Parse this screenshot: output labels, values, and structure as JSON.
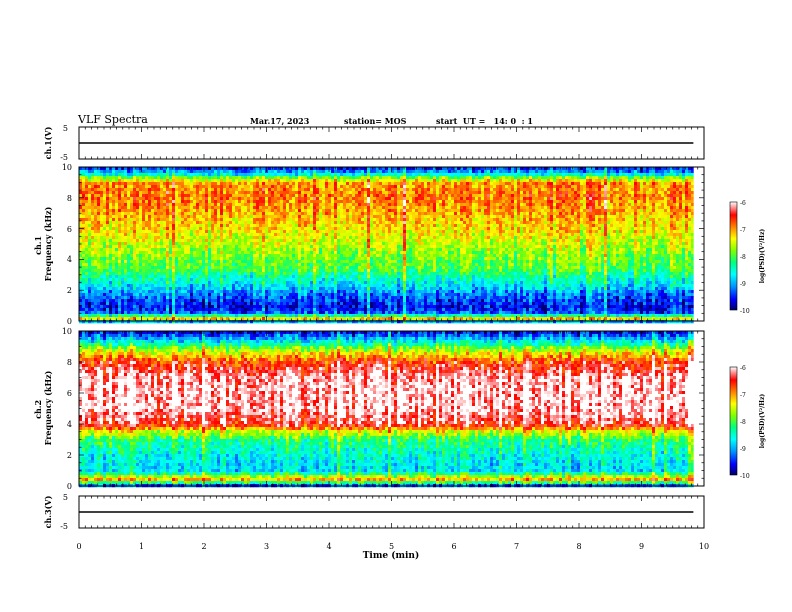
{
  "header": {
    "title": "VLF Spectra",
    "date": "Mar.17, 2023",
    "station": "station= MOS",
    "start": "start  UT =   14: 0  : 1"
  },
  "chart_data": [
    {
      "type": "line",
      "name": "ch1-waveform",
      "ylabel": "ch.1(V)",
      "ylim": [
        -5,
        5
      ],
      "yticks": [
        "5",
        "-5"
      ],
      "x": [
        0,
        9.83
      ],
      "values": [
        0,
        0
      ],
      "color": "#000000"
    },
    {
      "type": "heatmap",
      "name": "ch1-spectrogram",
      "ylabel": "ch.1\nFrequency (kHz)",
      "ylim": [
        0,
        10
      ],
      "yticks": [
        "0",
        "2",
        "4",
        "6",
        "8",
        "10"
      ],
      "xlim": [
        0,
        10
      ],
      "data_end_min": 9.83,
      "freq_profile_log_psd": [
        [
          0.0,
          -9.8
        ],
        [
          0.3,
          -7.2
        ],
        [
          0.6,
          -9.3
        ],
        [
          1.0,
          -9.6
        ],
        [
          1.5,
          -9.4
        ],
        [
          2.0,
          -9.1
        ],
        [
          2.3,
          -8.8
        ],
        [
          3.0,
          -8.4
        ],
        [
          3.5,
          -8.0
        ],
        [
          4.0,
          -7.9
        ],
        [
          5.0,
          -7.6
        ],
        [
          6.0,
          -7.3
        ],
        [
          7.0,
          -7.1
        ],
        [
          8.0,
          -6.9
        ],
        [
          9.0,
          -7.0
        ],
        [
          9.3,
          -7.8
        ],
        [
          9.6,
          -8.9
        ],
        [
          10.0,
          -9.6
        ]
      ],
      "colorbar": {
        "label": "log(PSD)(V²/Hz)",
        "ticks": [
          "-6",
          "-7",
          "-8",
          "-9",
          "-10"
        ],
        "range": [
          -10,
          -6
        ]
      }
    },
    {
      "type": "heatmap",
      "name": "ch2-spectrogram",
      "ylabel": "ch.2\nFrequency (kHz)",
      "ylim": [
        0,
        10
      ],
      "yticks": [
        "0",
        "2",
        "4",
        "6",
        "8",
        "10"
      ],
      "xlim": [
        0,
        10
      ],
      "data_end_min": 9.83,
      "freq_profile_log_psd": [
        [
          0.0,
          -9.8
        ],
        [
          0.5,
          -7.0
        ],
        [
          1.0,
          -8.8
        ],
        [
          2.0,
          -8.6
        ],
        [
          3.0,
          -8.2
        ],
        [
          3.6,
          -7.4
        ],
        [
          4.0,
          -6.4
        ],
        [
          5.0,
          -6.05
        ],
        [
          6.0,
          -6.05
        ],
        [
          7.0,
          -6.1
        ],
        [
          8.0,
          -6.6
        ],
        [
          8.7,
          -7.5
        ],
        [
          9.3,
          -8.6
        ],
        [
          9.7,
          -9.3
        ],
        [
          10.0,
          -9.7
        ]
      ],
      "colorbar": {
        "label": "log(PSD)(V²/Hz)",
        "ticks": [
          "-6",
          "-7",
          "-8",
          "-9",
          "-10"
        ],
        "range": [
          -10,
          -6
        ]
      }
    },
    {
      "type": "line",
      "name": "ch3-waveform",
      "ylabel": "ch.3(V)",
      "ylim": [
        -5,
        5
      ],
      "yticks": [
        "5",
        "-5"
      ],
      "x": [
        0,
        9.83
      ],
      "values": [
        0,
        0
      ],
      "color": "#000000"
    }
  ],
  "xaxis": {
    "label": "Time  (min)",
    "ticks": [
      "0",
      "1",
      "2",
      "3",
      "4",
      "5",
      "6",
      "7",
      "8",
      "9",
      "10"
    ],
    "range": [
      0,
      10
    ]
  },
  "colormap": [
    "#000066",
    "#0000ff",
    "#0096ff",
    "#00ffff",
    "#00ff80",
    "#80ff00",
    "#ffff00",
    "#ff8000",
    "#ff0000",
    "#ffffff"
  ]
}
